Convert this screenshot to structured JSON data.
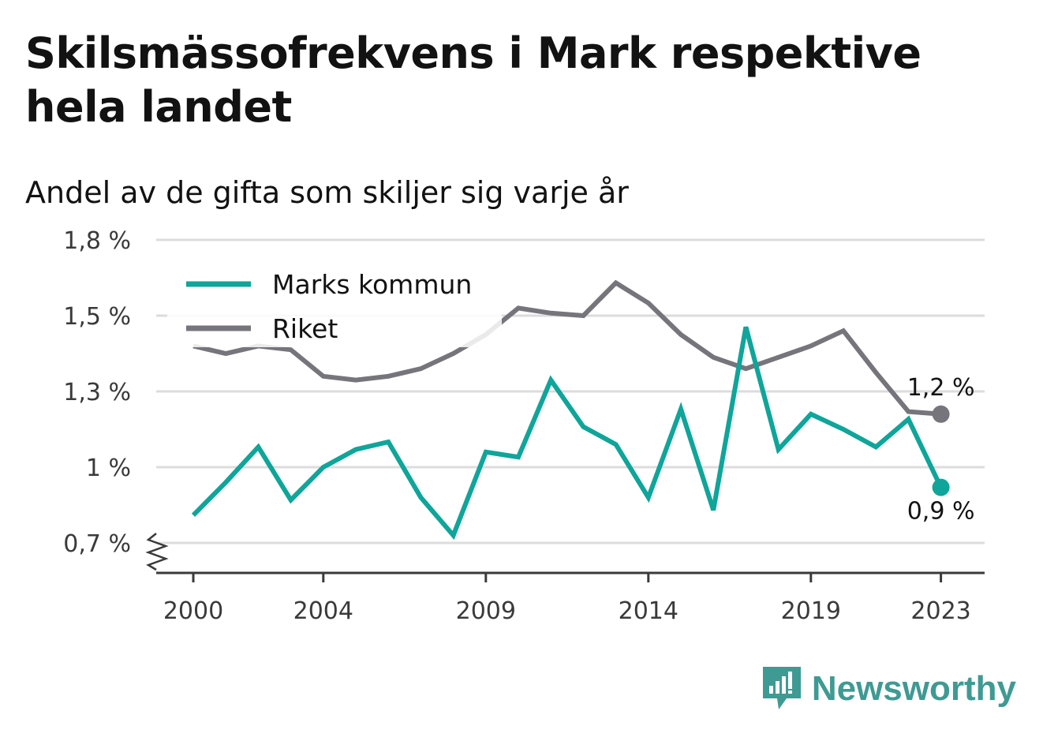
{
  "title": "Skilsmässofrekvens i Mark respektive hela landet",
  "subtitle": "Andel av de gifta som skiljer sig varje år",
  "brand": "Newsworthy",
  "colors": {
    "marks": "#0fa59a",
    "riket": "#76757b",
    "grid": "#dcdcdc",
    "axis": "#3a3a3a"
  },
  "chart_data": {
    "type": "line",
    "y_ticks": [
      0.7,
      1.0,
      1.3,
      1.5,
      1.8
    ],
    "y_tick_labels": [
      "0,7 %",
      "1 %",
      "1,3 %",
      "1,5 %",
      "1,8 %"
    ],
    "ylim": [
      0.68,
      1.8
    ],
    "y_axis_broken": true,
    "x_ticks": [
      2000,
      2004,
      2009,
      2014,
      2019,
      2023
    ],
    "xlim": [
      1999,
      2024.2
    ],
    "grid": true,
    "legend_position": "top-left",
    "series": [
      {
        "name": "Marks kommun",
        "color": "#0fa59a",
        "x": [
          2000,
          2001,
          2002,
          2003,
          2004,
          2005,
          2006,
          2007,
          2008,
          2009,
          2010,
          2011,
          2012,
          2013,
          2014,
          2015,
          2016,
          2017,
          2018,
          2019,
          2020,
          2021,
          2022,
          2023
        ],
        "values": [
          0.81,
          0.94,
          1.08,
          0.87,
          1.0,
          1.07,
          1.1,
          0.88,
          0.73,
          1.06,
          1.04,
          1.33,
          1.16,
          1.09,
          0.88,
          1.23,
          0.83,
          1.47,
          1.07,
          1.21,
          1.15,
          1.08,
          1.19,
          0.92
        ],
        "end_label": "0,9 %"
      },
      {
        "name": "Riket",
        "color": "#76757b",
        "x": [
          2000,
          2001,
          2002,
          2003,
          2004,
          2005,
          2006,
          2007,
          2008,
          2009,
          2010,
          2011,
          2012,
          2013,
          2014,
          2015,
          2016,
          2017,
          2018,
          2019,
          2020,
          2021,
          2022,
          2023
        ],
        "values": [
          1.42,
          1.4,
          1.42,
          1.41,
          1.34,
          1.33,
          1.34,
          1.36,
          1.4,
          1.45,
          1.53,
          1.51,
          1.5,
          1.63,
          1.55,
          1.45,
          1.39,
          1.36,
          1.39,
          1.42,
          1.46,
          1.35,
          1.22,
          1.21
        ],
        "end_label": "1,2 %"
      }
    ]
  }
}
